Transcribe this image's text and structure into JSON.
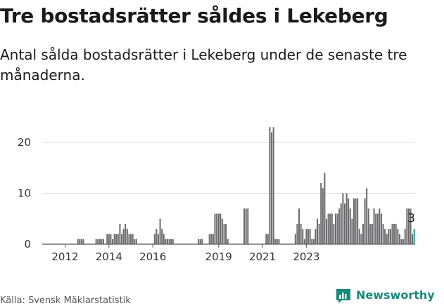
{
  "header": {
    "title": "Tre bostadsrätter såldes i Lekeberg",
    "subtitle": "Antal sålda bostadsrätter i Lekeberg under de senaste tre månaderna."
  },
  "footer": {
    "source": "Källa: Svensk Mäklarstatistik",
    "brand": "Newsworthy"
  },
  "colors": {
    "bar": "#6b6b6e",
    "highlight": "#1aa39a",
    "grid": "#dedede",
    "brand": "#1a8a7c"
  },
  "chart_data": {
    "type": "bar",
    "x_ticks": [
      "2012",
      "2014",
      "2016",
      "2019",
      "2021",
      "2023"
    ],
    "y_ticks": [
      0,
      10,
      20
    ],
    "ylim": [
      0,
      24
    ],
    "grid": true,
    "annotation": "3",
    "start_month": "2011-01",
    "values": [
      0,
      0,
      0,
      0,
      0,
      0,
      0,
      0,
      0,
      0,
      0,
      0,
      0,
      0,
      0,
      0,
      0,
      0,
      0,
      1,
      1,
      1,
      1,
      0,
      0,
      0,
      0,
      0,
      0,
      1,
      1,
      1,
      1,
      1,
      0,
      2,
      2,
      2,
      1,
      2,
      2,
      2,
      4,
      2,
      3,
      4,
      3,
      2,
      2,
      2,
      1,
      1,
      0,
      0,
      0,
      0,
      0,
      0,
      0,
      0,
      0,
      2,
      3,
      2,
      5,
      3,
      2,
      1,
      1,
      1,
      1,
      1,
      0,
      0,
      0,
      0,
      0,
      0,
      0,
      0,
      0,
      0,
      0,
      0,
      0,
      1,
      1,
      1,
      0,
      0,
      0,
      2,
      2,
      2,
      6,
      6,
      6,
      6,
      5,
      4,
      4,
      1,
      0,
      0,
      0,
      0,
      0,
      0,
      0,
      0,
      7,
      7,
      7,
      0,
      0,
      0,
      0,
      0,
      0,
      0,
      0,
      0,
      2,
      2,
      23,
      22,
      23,
      1,
      1,
      1,
      0,
      0,
      0,
      0,
      0,
      0,
      0,
      0,
      2,
      4,
      7,
      4,
      3,
      1,
      3,
      3,
      3,
      1,
      1,
      3,
      5,
      4,
      12,
      11,
      14,
      5,
      6,
      6,
      6,
      4,
      6,
      6,
      7,
      8,
      10,
      8,
      10,
      9,
      7,
      5,
      9,
      9,
      9,
      3,
      2,
      4,
      9,
      11,
      7,
      4,
      4,
      7,
      6,
      6,
      7,
      6,
      4,
      3,
      2,
      3,
      3,
      4,
      4,
      4,
      3,
      2,
      1,
      1,
      3,
      7,
      7,
      7,
      2,
      3
    ],
    "highlight_last": true
  }
}
